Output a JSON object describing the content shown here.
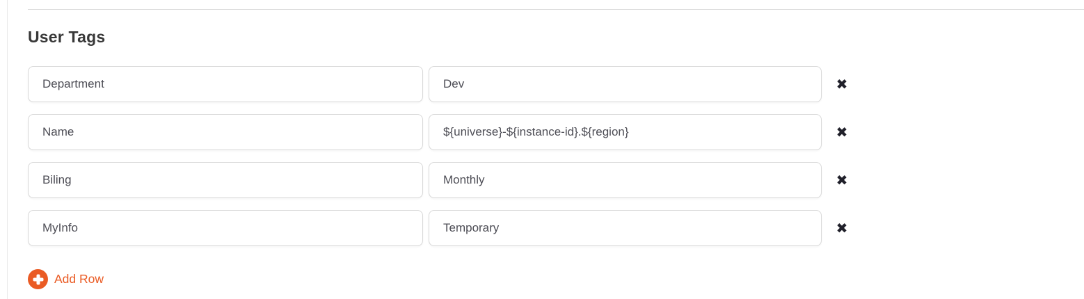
{
  "section": {
    "heading": "User Tags",
    "rows": [
      {
        "key": "Department",
        "value": "Dev"
      },
      {
        "key": "Name",
        "value": "${universe}-${instance-id}.${region}"
      },
      {
        "key": "Biling",
        "value": "Monthly"
      },
      {
        "key": "MyInfo",
        "value": "Temporary"
      }
    ],
    "remove_icon_glyph": "✖",
    "add_row_label": "Add Row"
  },
  "colors": {
    "accent_orange": "#ea5b24",
    "input_border": "#d8d8d8",
    "heading_text": "#383838",
    "input_text": "#4d4d55",
    "remove_icon": "#20202a",
    "divider": "#d9d9d9"
  }
}
